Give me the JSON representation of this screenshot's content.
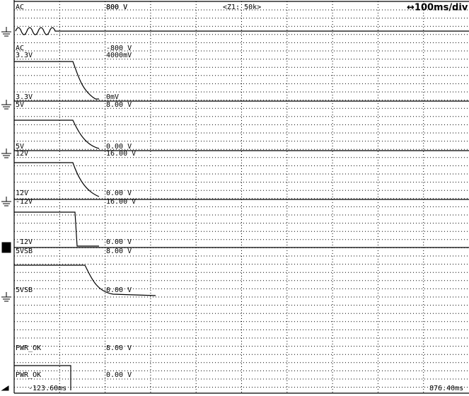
{
  "header": {
    "range": "800 V",
    "zoom": "<Z1: 50k>",
    "timebase": "↔100ms/div"
  },
  "channels": [
    {
      "top_name": "AC",
      "top_value": "800 V",
      "bottom_name": "AC",
      "bottom_value": "-800 V"
    },
    {
      "top_name": "3.3V",
      "top_value": "4000mV",
      "bottom_name": "3.3V",
      "bottom_value": "0mV"
    },
    {
      "top_name": "5V",
      "top_value": "8.00 V",
      "bottom_name": "5V",
      "bottom_value": "0.00 V"
    },
    {
      "top_name": "12V",
      "top_value": "16.00 V",
      "bottom_name": "12V",
      "bottom_value": "0.00 V"
    },
    {
      "top_name": "-12V",
      "top_value": "16.00 V",
      "bottom_name": "-12V",
      "bottom_value": "0.00 V"
    },
    {
      "top_name": "5VSB",
      "top_value": "8.00 V",
      "bottom_name": "5VSB",
      "bottom_value": "0.00 V"
    },
    {
      "top_name": "PWR_OK",
      "top_value": "8.00 V",
      "bottom_name": "PWR_OK",
      "bottom_value": "0.00 V"
    }
  ],
  "footer": {
    "start": "-123.60ms",
    "end": "876.40ms"
  }
}
